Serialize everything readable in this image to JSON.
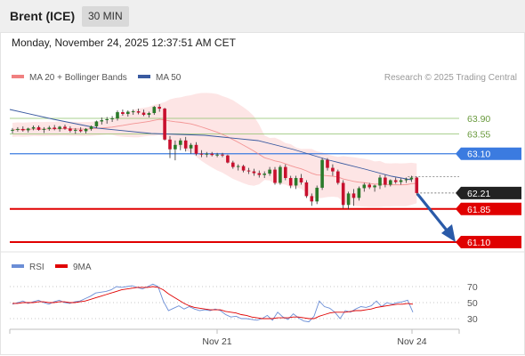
{
  "header": {
    "instrument": "Brent (ICE)",
    "interval": "30 MIN"
  },
  "timestamp": "Monday, November 24, 2025 12:37:51 AM CET",
  "legend": {
    "bollinger_label": "MA 20 + Bollinger Bands",
    "bollinger_color": "#f08080",
    "ma50_label": "MA 50",
    "ma50_color": "#3a5aa0"
  },
  "copyright": "Research © 2025 Trading Central",
  "rsi_legend": {
    "rsi_label": "RSI",
    "rsi_color": "#6b8ed6",
    "ma_label": "9MA",
    "ma_color": "#e00000"
  },
  "chart_data": {
    "type": "candlestick",
    "price_axis_range": [
      60.9,
      64.3
    ],
    "levels": [
      {
        "value": 63.9,
        "label": "63.90",
        "color": "#8dc06a",
        "kind": "resistance"
      },
      {
        "value": 63.55,
        "label": "63.55",
        "color": "#8dc06a",
        "kind": "resistance"
      },
      {
        "value": 63.1,
        "label": "63.10",
        "color": "#3b7be0",
        "kind": "pivot"
      },
      {
        "value": 61.85,
        "label": "61.85",
        "color": "#e00000",
        "kind": "support"
      },
      {
        "value": 61.1,
        "label": "61.10",
        "color": "#e00000",
        "kind": "support"
      }
    ],
    "last_price": {
      "value": 62.21,
      "label": "62.21"
    },
    "x_ticks": [
      "Nov 21",
      "Nov 24"
    ],
    "candles": [
      [
        63.62,
        63.68,
        63.56,
        63.64
      ],
      [
        63.64,
        63.7,
        63.6,
        63.66
      ],
      [
        63.66,
        63.72,
        63.6,
        63.63
      ],
      [
        63.63,
        63.69,
        63.58,
        63.67
      ],
      [
        63.67,
        63.74,
        63.63,
        63.7
      ],
      [
        63.7,
        63.74,
        63.62,
        63.64
      ],
      [
        63.64,
        63.7,
        63.57,
        63.66
      ],
      [
        63.66,
        63.73,
        63.62,
        63.69
      ],
      [
        63.69,
        63.75,
        63.63,
        63.66
      ],
      [
        63.66,
        63.73,
        63.6,
        63.71
      ],
      [
        63.71,
        63.76,
        63.64,
        63.67
      ],
      [
        63.67,
        63.72,
        63.58,
        63.62
      ],
      [
        63.62,
        63.68,
        63.55,
        63.64
      ],
      [
        63.64,
        63.7,
        63.58,
        63.61
      ],
      [
        63.61,
        63.68,
        63.56,
        63.66
      ],
      [
        63.66,
        63.74,
        63.62,
        63.72
      ],
      [
        63.72,
        63.85,
        63.68,
        63.83
      ],
      [
        63.83,
        63.92,
        63.76,
        63.86
      ],
      [
        63.86,
        63.93,
        63.78,
        63.88
      ],
      [
        63.88,
        63.95,
        63.82,
        63.9
      ],
      [
        63.9,
        64.08,
        63.85,
        64.04
      ],
      [
        64.04,
        64.1,
        63.96,
        64.0
      ],
      [
        64.0,
        64.08,
        63.94,
        64.05
      ],
      [
        64.05,
        64.1,
        63.98,
        64.06
      ],
      [
        64.06,
        64.12,
        63.99,
        64.03
      ],
      [
        64.03,
        64.1,
        63.95,
        63.98
      ],
      [
        63.98,
        64.05,
        63.92,
        64.02
      ],
      [
        64.02,
        64.18,
        63.98,
        64.16
      ],
      [
        64.16,
        64.22,
        64.05,
        64.12
      ],
      [
        64.12,
        64.14,
        63.4,
        63.42
      ],
      [
        63.42,
        63.5,
        63.0,
        63.2
      ],
      [
        63.2,
        63.4,
        62.95,
        63.3
      ],
      [
        63.3,
        63.45,
        63.18,
        63.4
      ],
      [
        63.4,
        63.48,
        63.15,
        63.22
      ],
      [
        63.22,
        63.34,
        63.1,
        63.3
      ],
      [
        63.3,
        63.36,
        63.06,
        63.1
      ],
      [
        63.1,
        63.18,
        63.02,
        63.08
      ],
      [
        63.08,
        63.14,
        63.02,
        63.1
      ],
      [
        63.1,
        63.14,
        63.04,
        63.07
      ],
      [
        63.07,
        63.12,
        63.02,
        63.08
      ],
      [
        63.08,
        63.12,
        63.02,
        63.06
      ],
      [
        63.06,
        63.08,
        62.88,
        62.9
      ],
      [
        62.9,
        62.94,
        62.76,
        62.8
      ],
      [
        62.8,
        62.86,
        62.72,
        62.82
      ],
      [
        62.82,
        62.85,
        62.68,
        62.72
      ],
      [
        62.72,
        62.78,
        62.64,
        62.7
      ],
      [
        62.7,
        62.76,
        62.6,
        62.66
      ],
      [
        62.66,
        62.72,
        62.56,
        62.62
      ],
      [
        62.62,
        62.7,
        62.55,
        62.65
      ],
      [
        62.65,
        62.8,
        62.6,
        62.74
      ],
      [
        62.74,
        62.8,
        62.4,
        62.44
      ],
      [
        62.44,
        62.84,
        62.4,
        62.8
      ],
      [
        62.8,
        62.86,
        62.5,
        62.55
      ],
      [
        62.55,
        62.6,
        62.32,
        62.38
      ],
      [
        62.38,
        62.6,
        62.3,
        62.55
      ],
      [
        62.55,
        62.64,
        62.4,
        62.45
      ],
      [
        62.45,
        62.5,
        62.1,
        62.14
      ],
      [
        62.14,
        62.2,
        61.92,
        62.02
      ],
      [
        62.02,
        62.38,
        61.96,
        62.33
      ],
      [
        62.33,
        63.0,
        62.28,
        62.96
      ],
      [
        62.96,
        63.0,
        62.72,
        62.78
      ],
      [
        62.78,
        62.86,
        62.6,
        62.7
      ],
      [
        62.7,
        62.74,
        62.4,
        62.44
      ],
      [
        62.44,
        62.5,
        61.86,
        61.94
      ],
      [
        61.94,
        62.24,
        61.84,
        62.2
      ],
      [
        62.2,
        62.3,
        61.92,
        62.1
      ],
      [
        62.1,
        62.36,
        62.04,
        62.32
      ],
      [
        62.32,
        62.44,
        62.24,
        62.4
      ],
      [
        62.4,
        62.44,
        62.3,
        62.34
      ],
      [
        62.34,
        62.4,
        62.24,
        62.38
      ],
      [
        62.38,
        62.62,
        62.3,
        62.56
      ],
      [
        62.56,
        62.62,
        62.34,
        62.4
      ],
      [
        62.4,
        62.52,
        62.36,
        62.5
      ],
      [
        62.5,
        62.56,
        62.42,
        62.46
      ],
      [
        62.46,
        62.54,
        62.4,
        62.5
      ],
      [
        62.5,
        62.56,
        62.44,
        62.52
      ],
      [
        62.52,
        62.6,
        62.46,
        62.56
      ],
      [
        62.56,
        62.58,
        62.16,
        62.21
      ]
    ]
  },
  "rsi_data": {
    "axis_range": [
      10,
      90
    ],
    "ticks": [
      {
        "value": 70,
        "label": "70"
      },
      {
        "value": 50,
        "label": "50"
      },
      {
        "value": 30,
        "label": "30"
      }
    ],
    "rsi": [
      48,
      50,
      52,
      49,
      51,
      53,
      50,
      48,
      51,
      53,
      50,
      49,
      51,
      52,
      55,
      58,
      62,
      63,
      64,
      66,
      70,
      69,
      70,
      71,
      69,
      67,
      70,
      73,
      70,
      52,
      40,
      43,
      46,
      42,
      45,
      42,
      40,
      41,
      40,
      42,
      40,
      35,
      32,
      33,
      30,
      30,
      29,
      28,
      30,
      34,
      28,
      38,
      32,
      29,
      36,
      31,
      27,
      26,
      33,
      52,
      45,
      43,
      38,
      30,
      40,
      38,
      42,
      45,
      44,
      46,
      52,
      45,
      50,
      48,
      50,
      51,
      53,
      38
    ],
    "ma9": [
      49,
      49,
      50,
      50,
      50,
      51,
      51,
      50,
      50,
      51,
      51,
      50,
      50,
      51,
      52,
      54,
      56,
      58,
      60,
      62,
      64,
      66,
      67,
      68,
      69,
      69,
      69,
      70,
      69,
      66,
      61,
      57,
      53,
      49,
      46,
      44,
      43,
      42,
      41,
      41,
      41,
      39,
      38,
      37,
      35,
      34,
      32,
      31,
      30,
      30,
      30,
      31,
      31,
      31,
      32,
      32,
      31,
      30,
      30,
      33,
      35,
      37,
      38,
      38,
      38,
      39,
      40,
      40,
      41,
      42,
      44,
      45,
      46,
      47,
      48,
      48,
      49,
      48
    ]
  }
}
